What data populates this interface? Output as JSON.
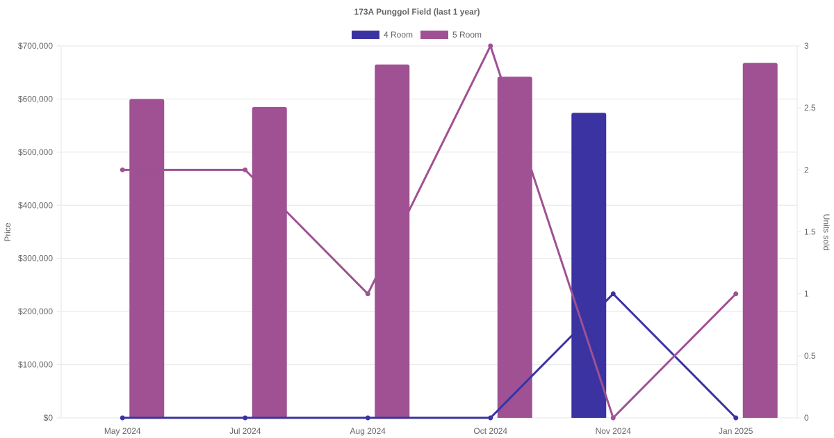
{
  "chart_data": {
    "type": "bar",
    "title": "173A Punggol Field (last 1 year)",
    "categories": [
      "May 2024",
      "Jul 2024",
      "Aug 2024",
      "Oct 2024",
      "Nov 2024",
      "Jan 2025"
    ],
    "ylabel": "Price",
    "y2label": "Units sold",
    "ylim": [
      0,
      700000
    ],
    "y2lim": [
      0,
      3
    ],
    "y_ticks": [
      "$0",
      "$100,000",
      "$200,000",
      "$300,000",
      "$400,000",
      "$500,000",
      "$600,000",
      "$700,000"
    ],
    "y2_ticks": [
      "0",
      "0.5",
      "1",
      "1.5",
      "2",
      "2.5",
      "3"
    ],
    "grid": true,
    "legend_position": "top",
    "series": [
      {
        "name": "4 Room",
        "color": "#3a33a1",
        "bar_values": [
          null,
          null,
          null,
          null,
          574000,
          null
        ],
        "line_values": [
          0,
          0,
          0,
          0,
          1,
          0
        ]
      },
      {
        "name": "5 Room",
        "color": "#9f5193",
        "bar_values": [
          600000,
          585000,
          665000,
          642000,
          null,
          668000
        ],
        "line_values": [
          2,
          2,
          1,
          3,
          0,
          1
        ]
      }
    ]
  }
}
